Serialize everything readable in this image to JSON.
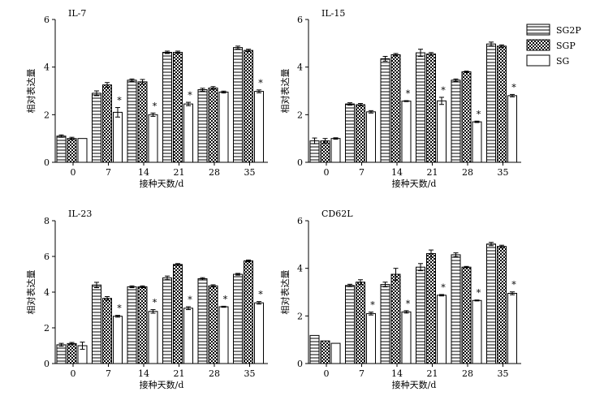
{
  "legend": {
    "items": [
      {
        "name": "SG2P",
        "pattern": "stripes"
      },
      {
        "name": "SGP",
        "pattern": "checker"
      },
      {
        "name": "SG",
        "pattern": "plain"
      }
    ]
  },
  "colors": {
    "bar_stroke": "#000000",
    "fill_plain": "#ffffff",
    "hatch": "#000000"
  },
  "chart_data": [
    {
      "type": "bar",
      "title": "IL-7",
      "xlabel": "接种天数/d",
      "ylabel": "相对表达量",
      "ylim": [
        0,
        6
      ],
      "yticks": [
        0,
        2,
        4,
        6
      ],
      "categories": [
        "0",
        "7",
        "14",
        "21",
        "28",
        "35"
      ],
      "series": [
        {
          "name": "SG2P",
          "values": [
            1.1,
            2.9,
            3.45,
            4.62,
            3.05,
            4.82
          ],
          "errors": [
            0.05,
            0.1,
            0.05,
            0.05,
            0.06,
            0.06
          ]
        },
        {
          "name": "SGP",
          "values": [
            1.0,
            3.25,
            3.38,
            4.62,
            3.12,
            4.7
          ],
          "errors": [
            0.05,
            0.1,
            0.1,
            0.05,
            0.06,
            0.05
          ]
        },
        {
          "name": "SG",
          "values": [
            1.0,
            2.1,
            2.0,
            2.45,
            2.95,
            2.98
          ],
          "errors": [
            0.0,
            0.2,
            0.07,
            0.07,
            0.04,
            0.06
          ]
        }
      ],
      "significance": [
        "",
        "*",
        "*",
        "*",
        "",
        "*"
      ]
    },
    {
      "type": "bar",
      "title": "IL-15",
      "xlabel": "接种天数/d",
      "ylabel": "相对表达量",
      "ylim": [
        0,
        6
      ],
      "yticks": [
        0,
        2,
        4,
        6
      ],
      "categories": [
        "0",
        "7",
        "14",
        "21",
        "28",
        "35"
      ],
      "series": [
        {
          "name": "SG2P",
          "values": [
            0.9,
            2.45,
            4.35,
            4.6,
            3.45,
            4.97
          ],
          "errors": [
            0.12,
            0.05,
            0.1,
            0.15,
            0.05,
            0.08
          ]
        },
        {
          "name": "SGP",
          "values": [
            0.9,
            2.42,
            4.52,
            4.55,
            3.8,
            4.88
          ],
          "errors": [
            0.1,
            0.05,
            0.05,
            0.06,
            0.03,
            0.05
          ]
        },
        {
          "name": "SG",
          "values": [
            1.0,
            2.12,
            2.57,
            2.58,
            1.7,
            2.8
          ],
          "errors": [
            0.03,
            0.05,
            0.02,
            0.15,
            0.03,
            0.05
          ]
        }
      ],
      "significance": [
        "",
        "",
        "*",
        "*",
        "*",
        "*"
      ]
    },
    {
      "type": "bar",
      "title": "IL-23",
      "xlabel": "接种天数/d",
      "ylabel": "相对表达量",
      "ylim": [
        0,
        8
      ],
      "yticks": [
        0,
        2,
        4,
        6,
        8
      ],
      "categories": [
        "0",
        "7",
        "14",
        "21",
        "28",
        "35"
      ],
      "series": [
        {
          "name": "SG2P",
          "values": [
            1.05,
            4.4,
            4.3,
            4.8,
            4.75,
            5.0
          ],
          "errors": [
            0.08,
            0.15,
            0.05,
            0.1,
            0.06,
            0.05
          ]
        },
        {
          "name": "SGP",
          "values": [
            1.12,
            3.65,
            4.3,
            5.55,
            4.35,
            5.75
          ],
          "errors": [
            0.06,
            0.1,
            0.05,
            0.05,
            0.06,
            0.05
          ]
        },
        {
          "name": "SG",
          "values": [
            1.0,
            2.65,
            2.92,
            3.1,
            3.18,
            3.4
          ],
          "errors": [
            0.2,
            0.05,
            0.1,
            0.08,
            0.03,
            0.07
          ]
        }
      ],
      "significance": [
        "",
        "*",
        "*",
        "*",
        "*",
        "*"
      ]
    },
    {
      "type": "bar",
      "title": "CD62L",
      "xlabel": "接种天数/d",
      "ylabel": "相对表达量",
      "ylim": [
        0,
        6
      ],
      "yticks": [
        0,
        2,
        4,
        6
      ],
      "categories": [
        "0",
        "7",
        "14",
        "21",
        "28",
        "35"
      ],
      "series": [
        {
          "name": "SG2P",
          "values": [
            1.18,
            3.28,
            3.32,
            4.05,
            4.57,
            5.02
          ],
          "errors": [
            0.0,
            0.05,
            0.1,
            0.15,
            0.08,
            0.07
          ]
        },
        {
          "name": "SGP",
          "values": [
            0.95,
            3.42,
            3.75,
            4.62,
            4.05,
            4.92
          ],
          "errors": [
            0.0,
            0.1,
            0.25,
            0.15,
            0.03,
            0.05
          ]
        },
        {
          "name": "SG",
          "values": [
            0.85,
            2.1,
            2.17,
            2.87,
            2.65,
            2.95
          ],
          "errors": [
            0.0,
            0.06,
            0.05,
            0.03,
            0.02,
            0.06
          ]
        }
      ],
      "significance": [
        "",
        "*",
        "*",
        "*",
        "*",
        "*"
      ]
    }
  ]
}
